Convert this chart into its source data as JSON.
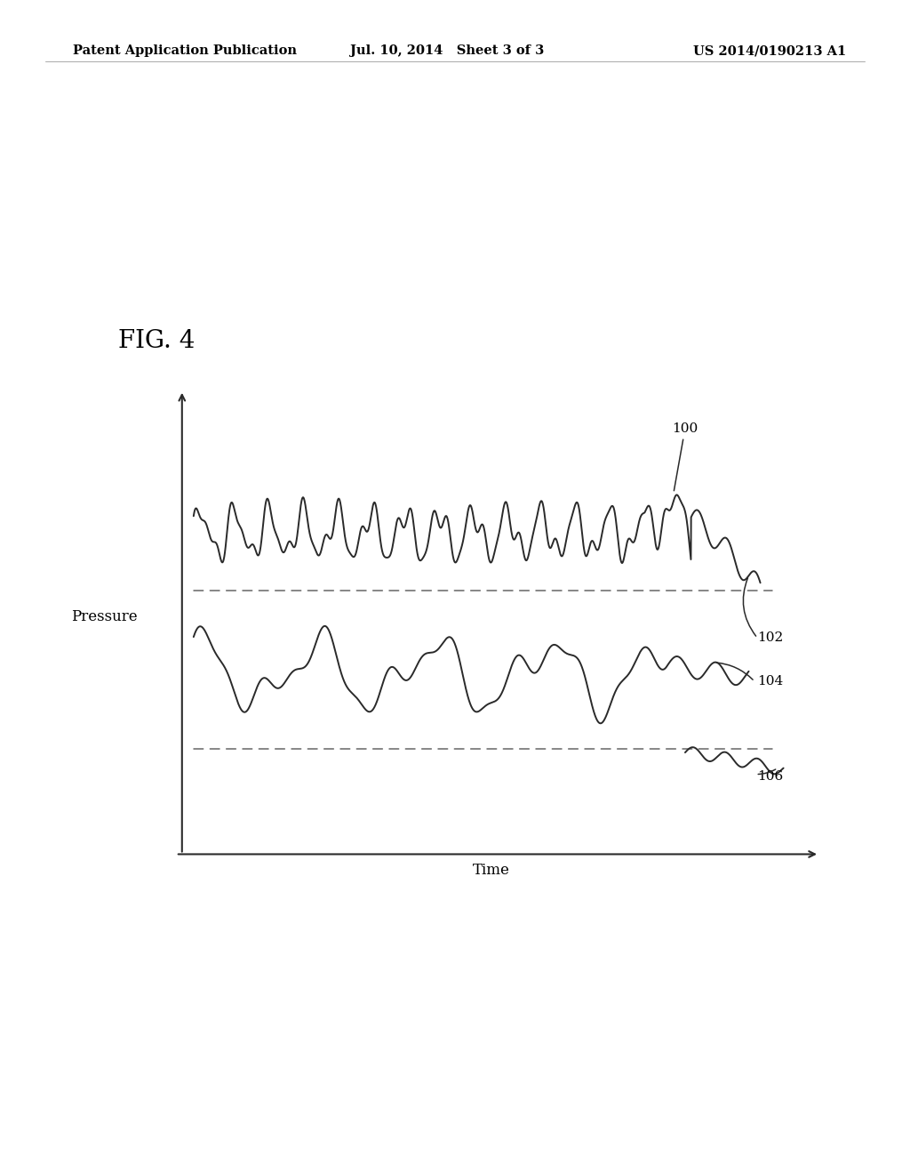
{
  "fig_label": "FIG. 4",
  "header_left": "Patent Application Publication",
  "header_mid": "Jul. 10, 2014   Sheet 3 of 3",
  "header_right": "US 2014/0190213 A1",
  "xlabel": "Time",
  "ylabel": "Pressure",
  "label_100": "100",
  "label_102": "102",
  "label_104": "104",
  "label_106": "106",
  "line_color": "#2a2a2a",
  "dash_color": "#666666",
  "background_color": "#ffffff",
  "fig_label_fontsize": 20,
  "header_fontsize": 10.5,
  "axis_label_fontsize": 12,
  "annot_fontsize": 11
}
